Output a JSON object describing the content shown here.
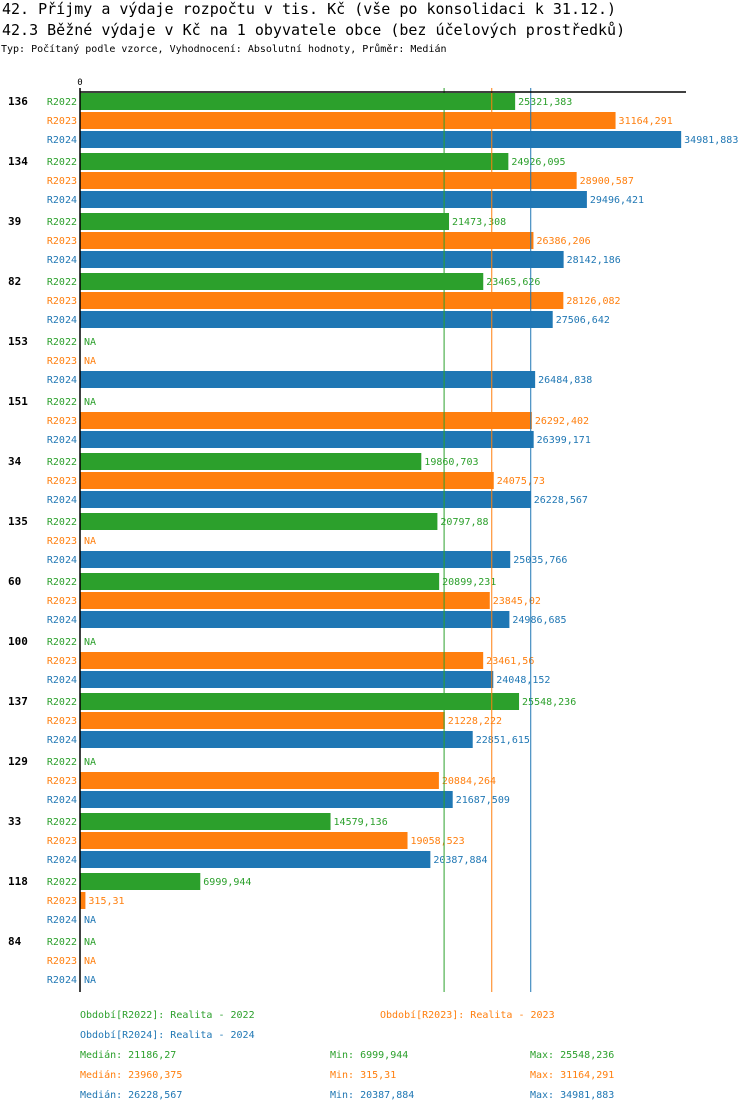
{
  "title": "42. Příjmy a výdaje rozpočtu v tis. Kč (vše po konsolidaci k 31.12.)",
  "subtitle": "42.3 Běžné výdaje v Kč na 1 obyvatele obce (bez účelových prostředků)",
  "info": "Typ: Počítaný podle vzorce, Vyhodnocení: Absolutní hodnoty, Průměr: Medián",
  "chart_data": {
    "type": "bar",
    "orientation": "horizontal",
    "xlim": [
      0,
      35000
    ],
    "x_tick_labels": [
      "0"
    ],
    "grid": false,
    "colors": {
      "R2022": "#2ca02c",
      "R2023": "#ff7f0e",
      "R2024": "#1f77b4"
    },
    "series_keys": [
      "R2022",
      "R2023",
      "R2024"
    ],
    "na_label": "NA",
    "categories": [
      "136",
      "134",
      "39",
      "82",
      "153",
      "151",
      "34",
      "135",
      "60",
      "100",
      "137",
      "129",
      "33",
      "118",
      "84"
    ],
    "series": [
      {
        "name": "R2022",
        "values": [
          25321.383,
          24926.095,
          21473.308,
          23465.626,
          null,
          null,
          19860.703,
          20797.88,
          20899.231,
          null,
          25548.236,
          null,
          14579.136,
          6999.944,
          null
        ],
        "labels": [
          "25321,383",
          "24926,095",
          "21473,308",
          "23465,626",
          "NA",
          "NA",
          "19860,703",
          "20797,88",
          "20899,231",
          "NA",
          "25548,236",
          "NA",
          "14579,136",
          "6999,944",
          "NA"
        ]
      },
      {
        "name": "R2023",
        "values": [
          31164.291,
          28900.587,
          26386.206,
          28126.082,
          null,
          26292.402,
          24075.73,
          null,
          23845.02,
          23461.56,
          21228.222,
          20884.264,
          19058.523,
          315.31,
          null
        ],
        "labels": [
          "31164,291",
          "28900,587",
          "26386,206",
          "28126,082",
          "NA",
          "26292,402",
          "24075,73",
          "NA",
          "23845,02",
          "23461,56",
          "21228,222",
          "20884,264",
          "19058,523",
          "315,31",
          "NA"
        ]
      },
      {
        "name": "R2024",
        "values": [
          34981.883,
          29496.421,
          28142.186,
          27506.642,
          26484.838,
          26399.171,
          26228.567,
          25035.766,
          24986.685,
          24048.152,
          22851.615,
          21687.509,
          20387.884,
          null,
          null
        ],
        "labels": [
          "34981,883",
          "29496,421",
          "28142,186",
          "27506,642",
          "26484,838",
          "26399,171",
          "26228,567",
          "25035,766",
          "24986,685",
          "24048,152",
          "22851,615",
          "21687,509",
          "20387,884",
          "NA",
          "NA"
        ]
      }
    ],
    "medians": {
      "R2022": 21186.27,
      "R2023": 23960.375,
      "R2024": 26228.567
    },
    "legend": [
      {
        "key": "R2022",
        "text": "Období[R2022]: Realita - 2022"
      },
      {
        "key": "R2023",
        "text": "Období[R2023]: Realita - 2023"
      },
      {
        "key": "R2024",
        "text": "Období[R2024]: Realita - 2024"
      }
    ],
    "stats": [
      {
        "key": "R2022",
        "median": "Medián: 21186,27",
        "min": "Min: 6999,944",
        "max": "Max: 25548,236"
      },
      {
        "key": "R2023",
        "median": "Medián: 23960,375",
        "min": "Min: 315,31",
        "max": "Max: 31164,291"
      },
      {
        "key": "R2024",
        "median": "Medián: 26228,567",
        "min": "Min: 20387,884",
        "max": "Max: 34981,883"
      }
    ]
  }
}
